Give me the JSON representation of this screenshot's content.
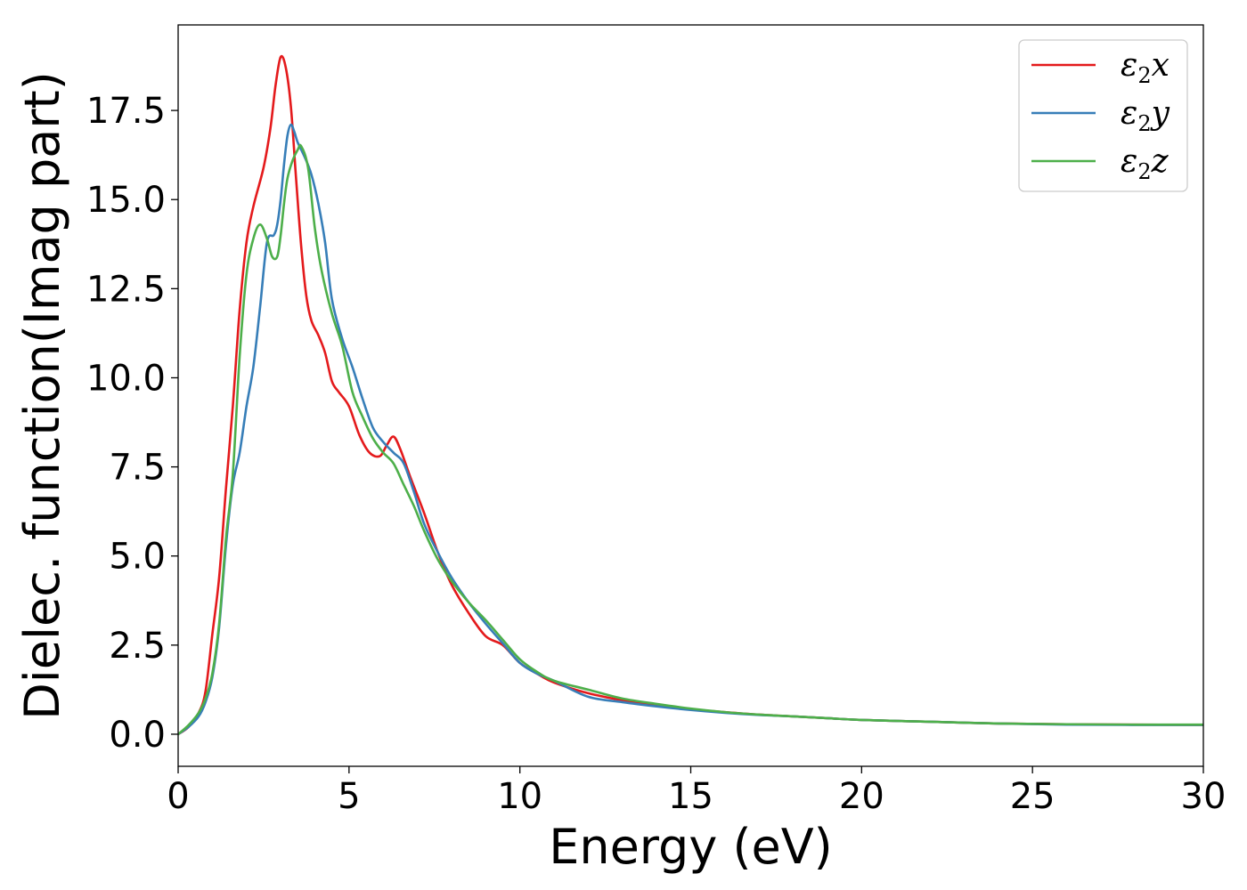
{
  "chart_data": {
    "type": "line",
    "xlabel": "Energy (eV)",
    "ylabel": "Dielec. function(Imag part)",
    "xlim": [
      0,
      30
    ],
    "ylim": [
      -0.9,
      19.9
    ],
    "xticks": [
      0,
      5,
      10,
      15,
      20,
      25,
      30
    ],
    "xtick_labels": [
      "0",
      "5",
      "10",
      "15",
      "20",
      "25",
      "30"
    ],
    "yticks": [
      0.0,
      2.5,
      5.0,
      7.5,
      10.0,
      12.5,
      15.0,
      17.5
    ],
    "ytick_labels": [
      "0.0",
      "2.5",
      "5.0",
      "7.5",
      "10.0",
      "12.5",
      "15.0",
      "17.5"
    ],
    "grid": false,
    "legend_position": "top-right",
    "series": [
      {
        "name": "ε₂x",
        "legend_base": "ε",
        "legend_sub": "2",
        "legend_var": "x",
        "color": "#e41a1c",
        "x": [
          0,
          0.3,
          0.6,
          0.8,
          1.0,
          1.2,
          1.4,
          1.6,
          1.8,
          2.0,
          2.2,
          2.5,
          2.7,
          2.85,
          3.0,
          3.15,
          3.3,
          3.45,
          3.6,
          3.75,
          3.9,
          4.1,
          4.3,
          4.5,
          4.7,
          5.0,
          5.3,
          5.6,
          5.9,
          6.1,
          6.3,
          6.5,
          6.8,
          7.2,
          7.6,
          8.0,
          8.5,
          9.0,
          9.5,
          10.0,
          10.5,
          11.0,
          12.0,
          13.0,
          14.0,
          15.0,
          16.0,
          17.0,
          18.0,
          19.0,
          20.0,
          22.0,
          24.0,
          26.0,
          28.0,
          30.0
        ],
        "y": [
          0.0,
          0.2,
          0.6,
          1.2,
          2.8,
          4.4,
          6.9,
          9.2,
          11.9,
          13.8,
          14.8,
          15.9,
          17.0,
          18.2,
          19.0,
          18.7,
          17.6,
          15.6,
          13.7,
          12.3,
          11.6,
          11.2,
          10.7,
          9.9,
          9.6,
          9.2,
          8.4,
          7.9,
          7.8,
          8.1,
          8.35,
          8.0,
          7.2,
          6.2,
          5.1,
          4.2,
          3.4,
          2.75,
          2.5,
          2.0,
          1.7,
          1.45,
          1.15,
          0.95,
          0.8,
          0.7,
          0.62,
          0.55,
          0.5,
          0.45,
          0.4,
          0.35,
          0.3,
          0.28,
          0.27,
          0.26
        ]
      },
      {
        "name": "ε₂y",
        "legend_base": "ε",
        "legend_sub": "2",
        "legend_var": "y",
        "color": "#377eb8",
        "x": [
          0,
          0.3,
          0.6,
          0.8,
          1.0,
          1.2,
          1.4,
          1.6,
          1.8,
          2.0,
          2.2,
          2.4,
          2.6,
          2.8,
          2.9,
          3.0,
          3.1,
          3.2,
          3.3,
          3.4,
          3.5,
          3.7,
          3.9,
          4.1,
          4.3,
          4.5,
          4.8,
          5.1,
          5.4,
          5.7,
          6.0,
          6.3,
          6.6,
          6.9,
          7.2,
          7.6,
          8.0,
          8.5,
          9.0,
          9.5,
          10.0,
          10.5,
          11.0,
          12.0,
          13.0,
          14.0,
          15.0,
          16.0,
          17.0,
          18.0,
          19.0,
          20.0,
          22.0,
          24.0,
          26.0,
          28.0,
          30.0
        ],
        "y": [
          0.0,
          0.2,
          0.5,
          0.9,
          1.6,
          3.0,
          5.3,
          7.0,
          7.9,
          9.2,
          10.3,
          12.0,
          13.8,
          14.0,
          14.3,
          15.0,
          16.0,
          16.8,
          17.1,
          16.9,
          16.6,
          16.2,
          15.7,
          14.9,
          13.8,
          12.2,
          11.1,
          10.3,
          9.4,
          8.6,
          8.2,
          7.9,
          7.6,
          6.8,
          5.9,
          5.1,
          4.4,
          3.7,
          3.1,
          2.55,
          2.0,
          1.7,
          1.5,
          1.05,
          0.9,
          0.78,
          0.68,
          0.6,
          0.54,
          0.5,
          0.45,
          0.4,
          0.35,
          0.3,
          0.27,
          0.26,
          0.26
        ]
      },
      {
        "name": "ε₂z",
        "legend_base": "ε",
        "legend_sub": "2",
        "legend_var": "z",
        "color": "#4daf4a",
        "x": [
          0,
          0.3,
          0.6,
          0.8,
          1.0,
          1.2,
          1.4,
          1.6,
          1.8,
          2.0,
          2.2,
          2.4,
          2.6,
          2.75,
          2.9,
          3.0,
          3.1,
          3.2,
          3.35,
          3.5,
          3.6,
          3.8,
          4.0,
          4.2,
          4.5,
          4.8,
          5.1,
          5.4,
          5.7,
          6.0,
          6.3,
          6.6,
          6.9,
          7.2,
          7.6,
          8.0,
          8.5,
          9.0,
          9.5,
          10.0,
          10.5,
          11.0,
          12.0,
          13.0,
          14.0,
          15.0,
          16.0,
          17.0,
          18.0,
          19.0,
          20.0,
          22.0,
          24.0,
          26.0,
          28.0,
          30.0
        ],
        "y": [
          0.0,
          0.25,
          0.6,
          1.0,
          1.7,
          3.1,
          5.5,
          7.3,
          10.6,
          12.9,
          13.9,
          14.3,
          13.9,
          13.4,
          13.4,
          14.0,
          14.9,
          15.6,
          16.1,
          16.4,
          16.5,
          15.9,
          14.2,
          13.0,
          11.8,
          10.9,
          9.6,
          8.9,
          8.3,
          7.9,
          7.6,
          7.0,
          6.4,
          5.7,
          4.9,
          4.3,
          3.7,
          3.2,
          2.65,
          2.1,
          1.75,
          1.5,
          1.25,
          1.0,
          0.85,
          0.72,
          0.62,
          0.55,
          0.5,
          0.45,
          0.4,
          0.35,
          0.3,
          0.28,
          0.27,
          0.27
        ]
      }
    ]
  }
}
